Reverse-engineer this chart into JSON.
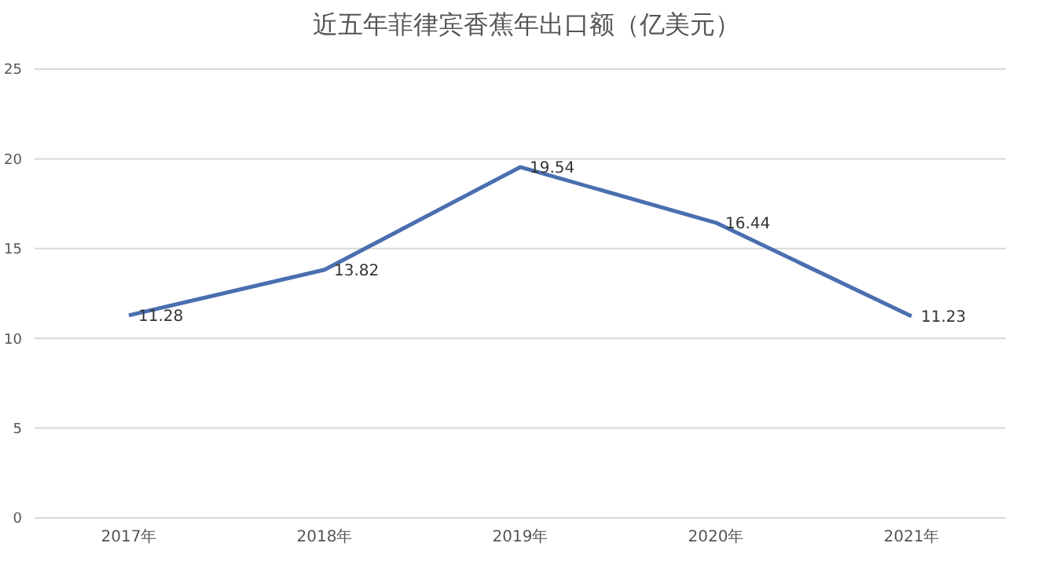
{
  "chart_data": {
    "type": "line",
    "title": "近五年菲律宾香蕉年出口额（亿美元）",
    "categories": [
      "2017年",
      "2018年",
      "2019年",
      "2020年",
      "2021年"
    ],
    "series": [
      {
        "color": "#4a6fb0",
        "values": [
          11.28,
          13.82,
          19.54,
          16.44,
          11.23
        ]
      }
    ],
    "ylim": [
      0,
      25
    ],
    "yticks": [
      0,
      5,
      10,
      15,
      20,
      25
    ],
    "grid": "y",
    "data_labels": true,
    "marker": "none",
    "line_style": "solid"
  }
}
